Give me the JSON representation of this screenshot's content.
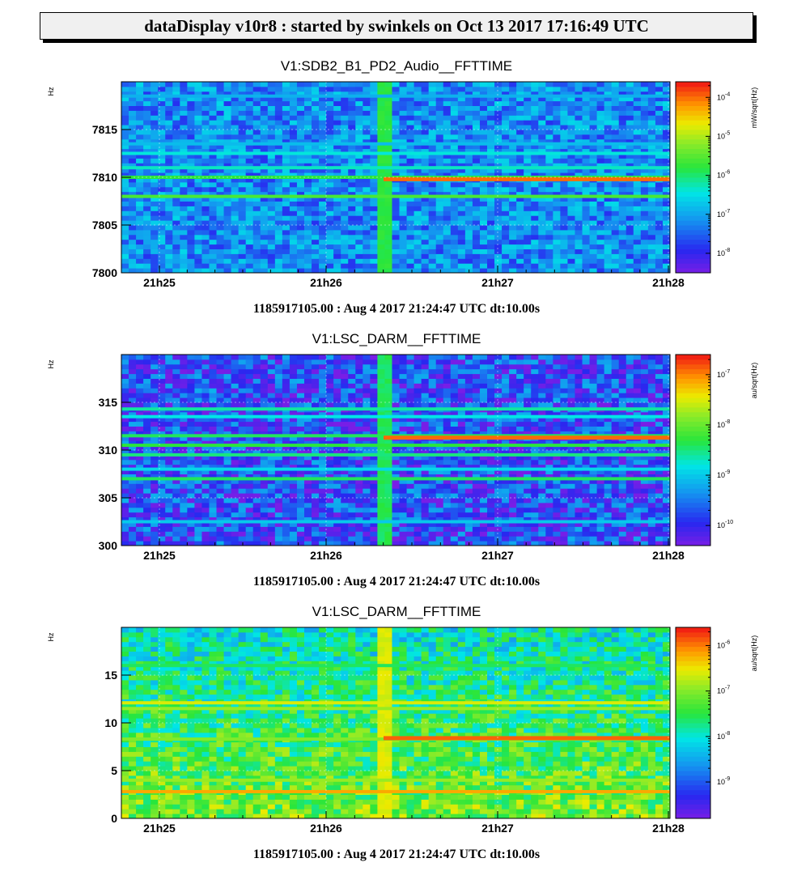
{
  "banner": "dataDisplay v10r8 : started by swinkels on Oct 13 2017 17:16:49 UTC",
  "chart_data": [
    {
      "type": "heatmap",
      "title": "V1:SDB2_B1_PD2_Audio__FFTTIME",
      "ylabel": "Hz",
      "colorbar_label": "mW/sqrt(Hz)",
      "x_ticks": [
        "21h25",
        "21h26",
        "21h27",
        "21h28"
      ],
      "y_ticks": [
        "7800",
        "7805",
        "7810",
        "7815"
      ],
      "y_tick_values": [
        7800,
        7805,
        7810,
        7815
      ],
      "ylim": [
        7800,
        7820
      ],
      "colorbar_ticks": [
        {
          "base": "10",
          "exp": "-4"
        },
        {
          "base": "10",
          "exp": "-5"
        },
        {
          "base": "10",
          "exp": "-6"
        },
        {
          "base": "10",
          "exp": "-7"
        },
        {
          "base": "10",
          "exp": "-8"
        }
      ],
      "colorbar_log_range": [
        -8.5,
        -3.6
      ],
      "background_log": -7.2,
      "lines": [
        {
          "freq": 7808.0,
          "log": -5.6
        },
        {
          "freq": 7810.0,
          "log": -5.8
        },
        {
          "freq": 7811.0,
          "log": -6.3
        },
        {
          "freq": 7812.5,
          "log": -6.4
        },
        {
          "freq": 7813.5,
          "log": -6.8
        },
        {
          "freq": 7818.5,
          "log": -6.9
        }
      ],
      "onset_lines": [
        {
          "freq": 7809.8,
          "log": -4.0
        }
      ],
      "footer": "1185917105.00 : Aug  4 2017 21:24:47 UTC dt:10.00s"
    },
    {
      "type": "heatmap",
      "title": "V1:LSC_DARM__FFTTIME",
      "ylabel": "Hz",
      "colorbar_label": "au/sqrt(Hz)",
      "x_ticks": [
        "21h25",
        "21h26",
        "21h27",
        "21h28"
      ],
      "y_ticks": [
        "300",
        "305",
        "310",
        "315"
      ],
      "y_tick_values": [
        300,
        305,
        310,
        315
      ],
      "ylim": [
        300,
        320
      ],
      "colorbar_ticks": [
        {
          "base": "10",
          "exp": "-7"
        },
        {
          "base": "10",
          "exp": "-8"
        },
        {
          "base": "10",
          "exp": "-9"
        },
        {
          "base": "10",
          "exp": "-10"
        }
      ],
      "colorbar_log_range": [
        -10.4,
        -6.6
      ],
      "background_log": -9.8,
      "lines": [
        {
          "freq": 302.5,
          "log": -9.0
        },
        {
          "freq": 307.0,
          "log": -8.4
        },
        {
          "freq": 308.0,
          "log": -8.9
        },
        {
          "freq": 309.5,
          "log": -8.5
        },
        {
          "freq": 310.5,
          "log": -8.3
        },
        {
          "freq": 311.5,
          "log": -8.4
        },
        {
          "freq": 313.5,
          "log": -8.8
        },
        {
          "freq": 314.3,
          "log": -8.6
        }
      ],
      "onset_lines": [
        {
          "freq": 311.3,
          "log": -6.9
        }
      ],
      "footer": "1185917105.00 : Aug  4 2017 21:24:47 UTC dt:10.00s"
    },
    {
      "type": "heatmap",
      "title": "V1:LSC_DARM__FFTTIME",
      "ylabel": "Hz",
      "colorbar_label": "au/sqrt(Hz)",
      "x_ticks": [
        "21h25",
        "21h26",
        "21h27",
        "21h28"
      ],
      "y_ticks": [
        "0",
        "5",
        "10",
        "15"
      ],
      "y_tick_values": [
        0,
        5,
        10,
        15
      ],
      "ylim": [
        0,
        20
      ],
      "colorbar_ticks": [
        {
          "base": "10",
          "exp": "-6"
        },
        {
          "base": "10",
          "exp": "-7"
        },
        {
          "base": "10",
          "exp": "-8"
        },
        {
          "base": "10",
          "exp": "-9"
        }
      ],
      "colorbar_log_range": [
        -9.8,
        -5.6
      ],
      "background_log": -8.0,
      "lines": [
        {
          "freq": 2.8,
          "log": -6.2
        },
        {
          "freq": 4.0,
          "log": -6.9
        },
        {
          "freq": 8.3,
          "log": -7.0
        },
        {
          "freq": 11.5,
          "log": -6.9
        },
        {
          "freq": 12.1,
          "log": -6.6
        },
        {
          "freq": 16.0,
          "log": -7.6
        }
      ],
      "onset_lines": [
        {
          "freq": 8.4,
          "log": -5.9
        }
      ],
      "footer": "1185917105.00 : Aug  4 2017 21:24:47 UTC dt:10.00s"
    }
  ]
}
